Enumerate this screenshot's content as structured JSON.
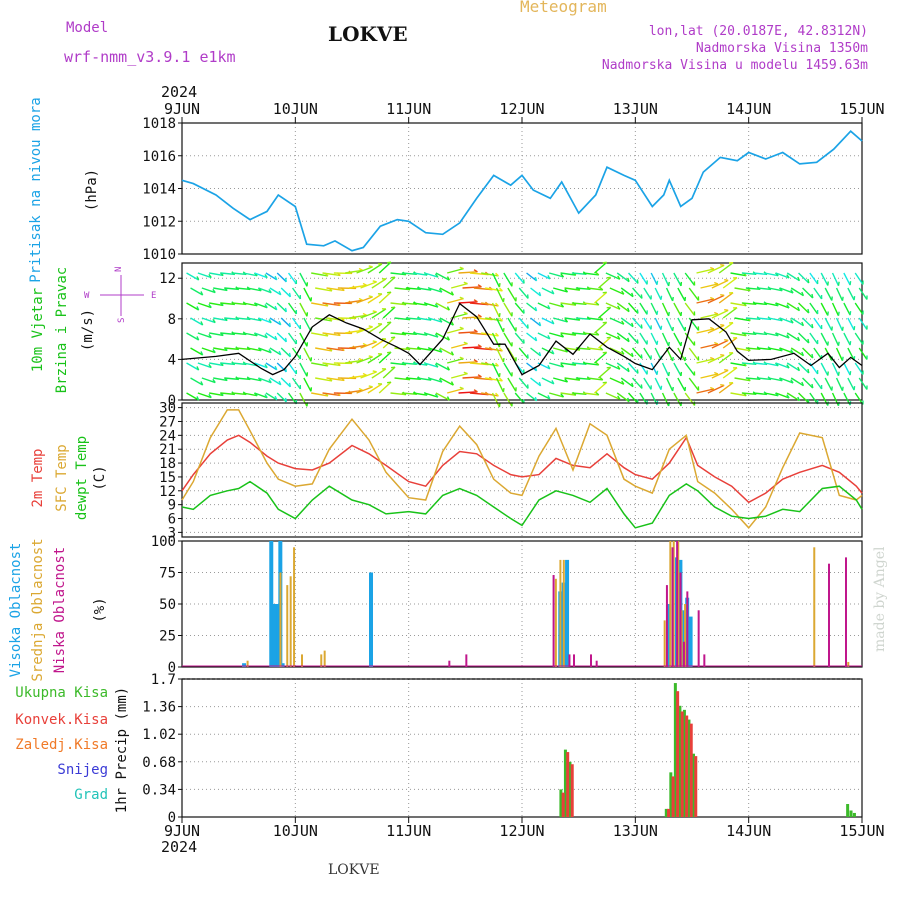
{
  "header": {
    "model_label": "Model",
    "model_name": "wrf-nmm_v3.9.1 e1km",
    "station": "LOKVE",
    "title": "Meteogram",
    "location": "lon,lat (20.0187E, 42.8312N)",
    "elevation": "Nadmorska Visina 1350m",
    "model_elevation": "Nadmorska Visina u modelu 1459.63m",
    "credit": "made by Angel",
    "footer_station": "LOKVE"
  },
  "time_axis": {
    "year": "2024",
    "ticks": [
      "9JUN",
      "10JUN",
      "11JUN",
      "12JUN",
      "13JUN",
      "14JUN",
      "15JUN"
    ]
  },
  "colors": {
    "pressure": "#1ba3e6",
    "wind_speed": "#000000",
    "temp_2m": "#e8403a",
    "temp_sfc": "#dba832",
    "dewpoint": "#19c219",
    "cloud_high": "#1ba3e6",
    "cloud_mid": "#dba832",
    "cloud_low": "#c0168c",
    "precip_total": "#3cba2a",
    "precip_conv": "#e8403a",
    "precip_frozen": "#f07a28",
    "precip_snow": "#3b3bd6",
    "precip_hail": "#22c3b8"
  },
  "chart_data": [
    {
      "id": "pressure",
      "type": "line",
      "ylabel": [
        "Pritisak na nivou mora",
        "(hPa)"
      ],
      "ylim": [
        1010,
        1018
      ],
      "yticks": [
        "1010",
        "1012",
        "1014",
        "1016",
        "1018"
      ],
      "x_days": [
        0,
        0.1,
        0.3,
        0.45,
        0.6,
        0.75,
        0.85,
        1,
        1.1,
        1.25,
        1.35,
        1.5,
        1.6,
        1.75,
        1.9,
        2,
        2.15,
        2.3,
        2.45,
        2.6,
        2.75,
        2.9,
        3,
        3.1,
        3.25,
        3.35,
        3.5,
        3.65,
        3.75,
        3.9,
        4,
        4.15,
        4.25,
        4.3,
        4.4,
        4.5,
        4.6,
        4.75,
        4.9,
        5,
        5.15,
        5.3,
        5.45,
        5.6,
        5.75,
        5.9,
        6
      ],
      "values": [
        1014.5,
        1014.3,
        1013.6,
        1012.8,
        1012.1,
        1012.6,
        1013.6,
        1012.9,
        1010.6,
        1010.5,
        1010.8,
        1010.2,
        1010.4,
        1011.7,
        1012.1,
        1012.0,
        1011.3,
        1011.2,
        1011.9,
        1013.4,
        1014.8,
        1014.2,
        1014.8,
        1013.9,
        1013.4,
        1014.4,
        1012.5,
        1013.6,
        1015.3,
        1014.8,
        1014.5,
        1012.9,
        1013.6,
        1014.5,
        1012.9,
        1013.4,
        1015.0,
        1015.9,
        1015.7,
        1016.2,
        1015.8,
        1016.2,
        1015.5,
        1015.6,
        1016.4,
        1017.5,
        1016.9
      ]
    },
    {
      "id": "wind",
      "type": "line",
      "ylabel": [
        "10m Vjetar",
        "Brzina i Pravac",
        "(m/s)"
      ],
      "direction_legend": [
        "N",
        "W",
        "E",
        "S"
      ],
      "ylim": [
        0,
        13.5
      ],
      "yticks": [
        "0",
        "4",
        "8",
        "12"
      ],
      "x_days": [
        0,
        0.3,
        0.5,
        0.7,
        0.8,
        0.9,
        1,
        1.15,
        1.3,
        1.45,
        1.6,
        1.75,
        1.9,
        2,
        2.1,
        2.3,
        2.45,
        2.6,
        2.75,
        2.85,
        3,
        3.15,
        3.3,
        3.45,
        3.6,
        3.75,
        3.9,
        4,
        4.15,
        4.3,
        4.4,
        4.5,
        4.65,
        4.8,
        4.9,
        5,
        5.2,
        5.4,
        5.55,
        5.7,
        5.8,
        5.9,
        6
      ],
      "values": [
        4.0,
        4.3,
        4.6,
        3.1,
        2.5,
        3.0,
        4.3,
        7.2,
        8.4,
        7.6,
        7.0,
        6.0,
        5.2,
        4.6,
        3.5,
        6.0,
        9.5,
        8.2,
        5.5,
        5.5,
        2.5,
        3.4,
        5.8,
        4.5,
        6.5,
        5.2,
        4.3,
        3.6,
        3.0,
        5.2,
        4.0,
        7.9,
        8.0,
        6.7,
        4.8,
        3.9,
        4.0,
        4.6,
        3.4,
        4.6,
        3.2,
        4.2,
        3.4
      ]
    },
    {
      "id": "temperature",
      "type": "line",
      "ylabel": [
        "2m Temp",
        "SFC Temp",
        "dewpt Temp",
        "(C)"
      ],
      "ylim": [
        2,
        31
      ],
      "yticks": [
        "3",
        "6",
        "9",
        "12",
        "15",
        "18",
        "21",
        "24",
        "27",
        "30"
      ],
      "series": [
        {
          "name": "2m Temp",
          "x_days": [
            0,
            0.1,
            0.25,
            0.4,
            0.5,
            0.6,
            0.75,
            0.85,
            1,
            1.15,
            1.3,
            1.5,
            1.65,
            1.8,
            2,
            2.15,
            2.3,
            2.45,
            2.6,
            2.75,
            2.9,
            3,
            3.15,
            3.3,
            3.45,
            3.6,
            3.75,
            3.9,
            4,
            4.15,
            4.3,
            4.45,
            4.55,
            4.7,
            4.85,
            5,
            5.15,
            5.3,
            5.45,
            5.65,
            5.8,
            5.95,
            6
          ],
          "values": [
            12.0,
            15.5,
            20.0,
            23.0,
            24.0,
            22.5,
            19.5,
            18.0,
            16.8,
            16.5,
            18.0,
            21.8,
            20.0,
            17.5,
            14.0,
            13.0,
            17.5,
            20.5,
            20.0,
            17.5,
            15.5,
            15.0,
            15.5,
            19.0,
            17.5,
            17.0,
            20.0,
            17.0,
            15.5,
            14.5,
            18.0,
            23.5,
            17.5,
            15.0,
            13.0,
            9.5,
            11.5,
            14.5,
            16.0,
            17.5,
            16.0,
            13.0,
            11.5
          ]
        },
        {
          "name": "SFC Temp",
          "x_days": [
            0,
            0.1,
            0.25,
            0.4,
            0.5,
            0.6,
            0.75,
            0.85,
            1,
            1.15,
            1.3,
            1.5,
            1.65,
            1.8,
            2,
            2.15,
            2.3,
            2.45,
            2.6,
            2.75,
            2.9,
            3,
            3.15,
            3.3,
            3.45,
            3.6,
            3.75,
            3.9,
            4,
            4.15,
            4.3,
            4.45,
            4.55,
            4.7,
            4.85,
            5,
            5.15,
            5.3,
            5.45,
            5.65,
            5.8,
            5.95,
            6
          ],
          "values": [
            10.0,
            14.0,
            23.5,
            29.5,
            29.5,
            25.0,
            18.0,
            14.5,
            13.0,
            13.5,
            21.0,
            27.5,
            23.0,
            16.0,
            10.5,
            10.0,
            20.5,
            26.0,
            22.0,
            14.5,
            11.5,
            11.0,
            19.5,
            25.5,
            16.5,
            26.5,
            24.0,
            14.5,
            13.0,
            11.5,
            21.0,
            24.0,
            14.0,
            11.5,
            8.0,
            4.0,
            8.5,
            17.0,
            24.5,
            23.5,
            11.0,
            10.0,
            11.0
          ]
        },
        {
          "name": "dewpt Temp",
          "x_days": [
            0,
            0.1,
            0.25,
            0.4,
            0.5,
            0.6,
            0.75,
            0.85,
            1,
            1.15,
            1.3,
            1.5,
            1.65,
            1.8,
            2,
            2.15,
            2.3,
            2.45,
            2.6,
            2.75,
            2.9,
            3,
            3.15,
            3.3,
            3.45,
            3.6,
            3.75,
            3.9,
            4,
            4.15,
            4.3,
            4.45,
            4.55,
            4.7,
            4.85,
            5,
            5.15,
            5.3,
            5.45,
            5.65,
            5.8,
            5.95,
            6
          ],
          "values": [
            8.5,
            8.0,
            11.0,
            12.0,
            12.5,
            14.0,
            11.5,
            8.0,
            6.0,
            10.0,
            13.0,
            10.0,
            9.0,
            7.0,
            7.5,
            7.0,
            11.0,
            12.5,
            11.0,
            8.5,
            6.0,
            4.5,
            10.0,
            12.0,
            11.0,
            9.5,
            12.5,
            7.0,
            4.0,
            5.0,
            11.0,
            13.5,
            12.0,
            8.5,
            6.5,
            6.0,
            6.5,
            8.0,
            7.5,
            12.5,
            13.0,
            10.0,
            8.0
          ]
        }
      ]
    },
    {
      "id": "clouds",
      "type": "bar",
      "ylabel": [
        "Visoka Oblacnost",
        "Srednja Oblacnost",
        "Niska Oblacnost",
        "(%)"
      ],
      "ylim": [
        0,
        100
      ],
      "yticks": [
        "0",
        "25",
        "50",
        "75",
        "100"
      ],
      "series": [
        {
          "name": "Visoka Oblacnost",
          "x_days": [
            0.53,
            0.77,
            0.8,
            0.83,
            0.85,
            0.87,
            1.65,
            3.32,
            3.35,
            3.38,
            4.28,
            4.35,
            4.38,
            4.41,
            4.44,
            4.47
          ],
          "values": [
            3,
            100,
            50,
            50,
            100,
            3,
            75,
            60,
            67,
            85,
            50,
            87,
            85,
            45,
            55,
            40
          ]
        },
        {
          "name": "Srednja Oblacnost",
          "x_days": [
            0.57,
            0.86,
            0.92,
            0.95,
            0.98,
            1.05,
            1.22,
            1.25,
            3.29,
            3.33,
            3.36,
            4.25,
            4.3,
            4.33,
            4.37,
            4.4,
            4.43,
            5.57,
            5.87
          ],
          "values": [
            5,
            75,
            65,
            72,
            95,
            10,
            10,
            13,
            70,
            85,
            85,
            37,
            100,
            100,
            100,
            45,
            50,
            95,
            4
          ]
        },
        {
          "name": "Niska Oblacnost",
          "x_days": [
            2.35,
            2.5,
            3.27,
            3.41,
            3.45,
            3.6,
            3.65,
            4.27,
            4.32,
            4.36,
            4.39,
            4.42,
            4.45,
            4.55,
            4.6,
            5.7,
            5.85
          ],
          "values": [
            5,
            10,
            73,
            10,
            10,
            10,
            5,
            65,
            95,
            100,
            75,
            20,
            60,
            45,
            10,
            82,
            87
          ]
        }
      ]
    },
    {
      "id": "precip",
      "type": "bar",
      "ylabel": [
        "1hr Precip (mm)"
      ],
      "legend": [
        "Ukupna Kisa",
        "Konvek.Kisa",
        "Zaledj.Kisa",
        "Snijeg",
        "Grad"
      ],
      "ylim": [
        0,
        1.7
      ],
      "yticks": [
        "0",
        "0.34",
        "0.68",
        "1.02",
        "1.36",
        "1.7"
      ],
      "series": [
        {
          "name": "Ukupna Kisa",
          "x_days": [
            3.33,
            3.37,
            3.41,
            4.26,
            4.3,
            4.34,
            4.38,
            4.42,
            4.46,
            4.5,
            5.86,
            5.89,
            5.92
          ],
          "values": [
            0.34,
            0.83,
            0.68,
            0.1,
            0.55,
            1.65,
            1.37,
            1.32,
            1.2,
            0.78,
            0.16,
            0.08,
            0.05
          ]
        },
        {
          "name": "Konvek.Kisa",
          "x_days": [
            3.35,
            3.39,
            3.43,
            4.28,
            4.32,
            4.36,
            4.4,
            4.44,
            4.48,
            4.52
          ],
          "values": [
            0.3,
            0.8,
            0.65,
            0.1,
            0.5,
            1.55,
            1.3,
            1.25,
            1.15,
            0.75
          ]
        }
      ]
    }
  ]
}
